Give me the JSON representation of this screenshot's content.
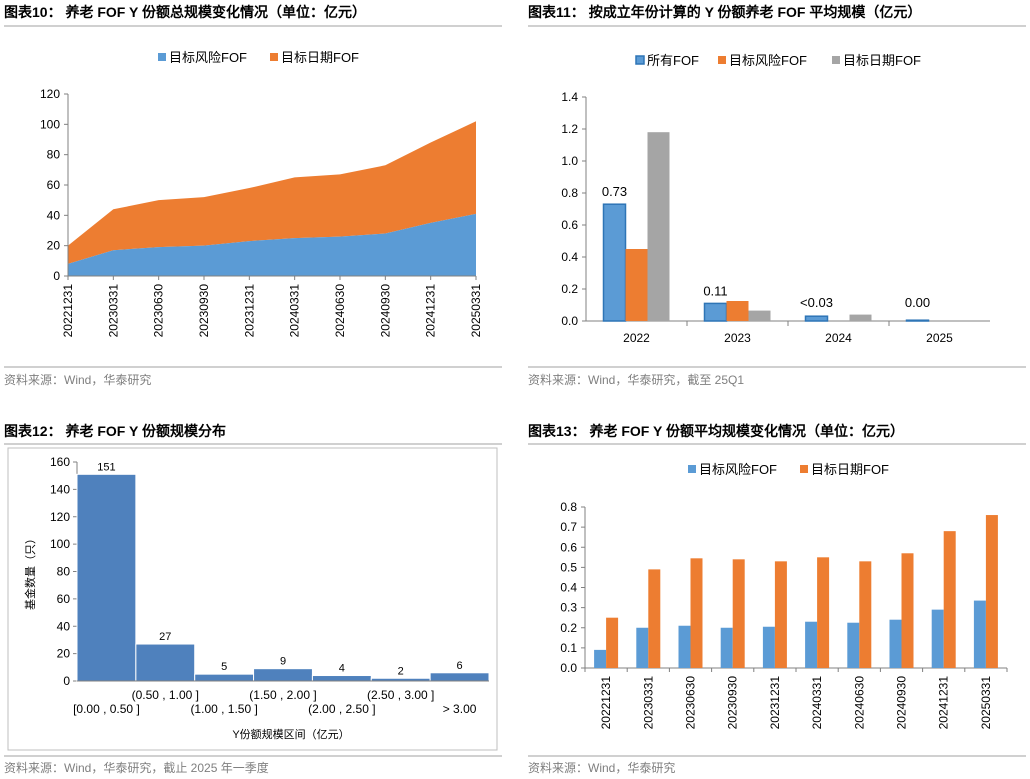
{
  "panels": [
    {
      "title": "图表10： 养老 FOF Y 份额总规模变化情况（单位：亿元）",
      "source": "资料来源：Wind，华泰研究"
    },
    {
      "title": "图表11： 按成立年份计算的 Y 份额养老 FOF 平均规模（亿元）",
      "source": "资料来源：Wind，华泰研究，截至 25Q1"
    },
    {
      "title": "图表12： 养老 FOF Y 份额规模分布",
      "source": "资料来源：Wind，华泰研究，截止 2025 年一季度"
    },
    {
      "title": "图表13： 养老 FOF Y 份额平均规模变化情况（单位：亿元）",
      "source": "资料来源：Wind，华泰研究"
    }
  ],
  "colors": {
    "blue": "#5b9bd5",
    "orange": "#ed7d31",
    "gray": "#a5a5a5",
    "hist": "#4f81bd"
  },
  "chart_data": [
    {
      "type": "area",
      "stacked": true,
      "categories": [
        "20221231",
        "20230331",
        "20230630",
        "20230930",
        "20231231",
        "20240331",
        "20240630",
        "20240930",
        "20241231",
        "20250331"
      ],
      "series": [
        {
          "name": "目标风险FOF",
          "values": [
            8,
            17,
            19,
            20,
            23,
            25,
            26,
            28,
            35,
            41
          ]
        },
        {
          "name": "目标日期FOF",
          "values": [
            12,
            27,
            31,
            32,
            35,
            40,
            41,
            45,
            53,
            61
          ]
        }
      ],
      "ylim": [
        0,
        120
      ],
      "yticks": [
        0,
        20,
        40,
        60,
        80,
        100,
        120
      ],
      "legend": "top"
    },
    {
      "type": "bar",
      "categories": [
        "2022",
        "2023",
        "2024",
        "2025"
      ],
      "series": [
        {
          "name": "所有FOF",
          "values": [
            0.73,
            0.11,
            0.03,
            0.005
          ]
        },
        {
          "name": "目标风险FOF",
          "values": [
            0.45,
            0.125,
            0,
            0
          ]
        },
        {
          "name": "目标日期FOF",
          "values": [
            1.18,
            0.065,
            0.04,
            0
          ]
        }
      ],
      "data_labels": [
        "0.73",
        "0.11",
        "<0.03",
        "0.00"
      ],
      "ylim": [
        0,
        1.4
      ],
      "yticks": [
        "0.0",
        "0.2",
        "0.4",
        "0.6",
        "0.8",
        "1.0",
        "1.2",
        "1.4"
      ],
      "legend": "top"
    },
    {
      "type": "bar",
      "subtype": "histogram",
      "categories": [
        "[0.00 , 0.50 ]",
        "(0.50 , 1.00 ]",
        "(1.00 , 1.50 ]",
        "(1.50 , 2.00 ]",
        "(2.00 , 2.50 ]",
        "(2.50 , 3.00 ]",
        "> 3.00"
      ],
      "values": [
        151,
        27,
        5,
        9,
        4,
        2,
        6
      ],
      "xlabel": "Y份额规模区间（亿元）",
      "ylabel": "基金数量（只）",
      "ylim": [
        0,
        160
      ],
      "yticks": [
        0,
        20,
        40,
        60,
        80,
        100,
        120,
        140,
        160
      ]
    },
    {
      "type": "bar",
      "categories": [
        "20221231",
        "20230331",
        "20230630",
        "20230930",
        "20231231",
        "20240331",
        "20240630",
        "20240930",
        "20241231",
        "20250331"
      ],
      "series": [
        {
          "name": "目标风险FOF",
          "values": [
            0.09,
            0.2,
            0.21,
            0.2,
            0.205,
            0.23,
            0.225,
            0.24,
            0.29,
            0.335
          ]
        },
        {
          "name": "目标日期FOF",
          "values": [
            0.25,
            0.49,
            0.545,
            0.54,
            0.53,
            0.55,
            0.53,
            0.57,
            0.68,
            0.76
          ]
        }
      ],
      "ylim": [
        0,
        0.8
      ],
      "yticks": [
        "0.0",
        "0.1",
        "0.2",
        "0.3",
        "0.4",
        "0.5",
        "0.6",
        "0.7",
        "0.8"
      ],
      "legend": "top"
    }
  ]
}
